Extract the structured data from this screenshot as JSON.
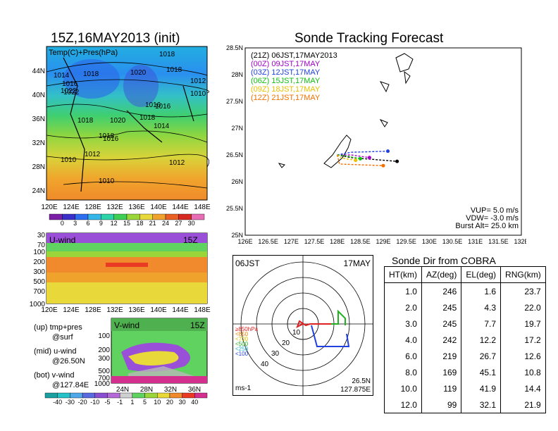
{
  "left": {
    "title": "15Z,16MAY2013 (init)",
    "top_panel": {
      "label": "Temp(C)+Pres(hPa)",
      "lat_labels": [
        "44N",
        "40N",
        "36N",
        "32N",
        "28N",
        "24N"
      ],
      "lon_labels": [
        "120E",
        "124E",
        "128E",
        "132E",
        "136E",
        "140E",
        "144E",
        "148E"
      ],
      "pressure_labels": [
        "1018",
        "1014",
        "1016",
        "1018",
        "1020",
        "1022",
        "1018",
        "1012",
        "1010",
        "1022",
        "1016",
        "1018",
        "1020",
        "1018",
        "1016",
        "1014",
        "1012",
        "1010",
        "1012",
        "1010",
        "1016",
        "1018"
      ],
      "colorbar_ticks": [
        "0",
        "3",
        "6",
        "9",
        "12",
        "15",
        "18",
        "21",
        "24",
        "27",
        "30"
      ],
      "colorbar_colors": [
        "#7a1fa6",
        "#3b2fc9",
        "#2d6ef0",
        "#33b6e8",
        "#2fd3a8",
        "#3fcf55",
        "#9ad63a",
        "#e8d83a",
        "#f0a32c",
        "#ea5f23",
        "#d62a22",
        "#e66db6"
      ]
    },
    "u_panel": {
      "label": "U-wind",
      "time": "15Z",
      "y_labels": [
        "30",
        "70",
        "100",
        "200",
        "300",
        "500",
        "700",
        "1000"
      ],
      "x_labels": [
        "120E",
        "124E",
        "128E",
        "132E",
        "136E",
        "140E",
        "144E",
        "148E"
      ]
    },
    "v_panel": {
      "label": "V-wind",
      "time": "15Z",
      "y_labels": [
        "100",
        "200",
        "300",
        "500",
        "700",
        "1000"
      ],
      "x_labels": [
        "24N",
        "28N",
        "32N",
        "36N"
      ]
    },
    "notes": [
      "(up) tmp+pres",
      "@surf",
      "(mid) u-wind",
      "@26.50N",
      "(bot) v-wind",
      "@127.84E"
    ],
    "wind_colorbar_ticks": [
      "-40",
      "-30",
      "-20",
      "-10",
      "-5",
      "-1",
      "1",
      "5",
      "10",
      "20",
      "30",
      "40"
    ],
    "wind_colorbar_colors": [
      "#1aa0a0",
      "#22c2c8",
      "#4fa8e8",
      "#5a6ae0",
      "#8a4fd0",
      "#b36ad8",
      "#cfcfcf",
      "#5fd25f",
      "#9ad63a",
      "#e8d83a",
      "#f08a2c",
      "#ea3a23",
      "#d42f8e"
    ]
  },
  "right": {
    "title": "Sonde Tracking Forecast",
    "tracks_legend": [
      {
        "text": "(21Z) 06JST,17MAY2013",
        "color": "#000000"
      },
      {
        "text": "(00Z) 09JST,17MAY",
        "color": "#a000c8"
      },
      {
        "text": "(03Z) 12JST,17MAY",
        "color": "#2040e0"
      },
      {
        "text": "(06Z) 15JST,17MAY",
        "color": "#10c010"
      },
      {
        "text": "(09Z) 18JST,17MAY",
        "color": "#e8c000"
      },
      {
        "text": "(12Z) 21JST,17MAY",
        "color": "#f07000"
      }
    ],
    "params": [
      "VUP= 5.0 m/s",
      "VDW= -3.0 m/s",
      "Burst Alt= 25.0 km"
    ],
    "lat_ticks": [
      "28.5N",
      "28N",
      "27.5N",
      "27N",
      "26.5N",
      "26N",
      "25.5N",
      "25N"
    ],
    "lon_ticks": [
      "126E",
      "126.5E",
      "127E",
      "127.5E",
      "128E",
      "128.5E",
      "129E",
      "129.5E",
      "130E",
      "130.5E",
      "131E",
      "131.5E",
      "132E"
    ]
  },
  "hodograph": {
    "time_left": "06JST",
    "date_right": "17MAY",
    "ring_labels": [
      "10",
      "20",
      "30",
      "40"
    ],
    "level_legend": [
      {
        "text": "≥850hPa",
        "color": "#e02020"
      },
      {
        "text": "<850",
        "color": "#f08000"
      },
      {
        "text": "<700",
        "color": "#d8c000"
      },
      {
        "text": "<500",
        "color": "#20b020"
      },
      {
        "text": "<250",
        "color": "#20b0d0"
      },
      {
        "text": "<100",
        "color": "#2040e0"
      }
    ],
    "unit": "ms-1",
    "loc_lat": "26.5N",
    "loc_lon": "127.875E"
  },
  "cobra_table": {
    "title": "Sonde Dir from COBRA",
    "headers": [
      "HT(km)",
      "AZ(deg)",
      "EL(deg)",
      "RNG(km)"
    ],
    "rows": [
      [
        "1.0",
        "246",
        "1.6",
        "23.7"
      ],
      [
        "2.0",
        "245",
        "4.3",
        "22.0"
      ],
      [
        "3.0",
        "245",
        "7.7",
        "19.7"
      ],
      [
        "4.0",
        "242",
        "12.2",
        "17.2"
      ],
      [
        "6.0",
        "219",
        "26.7",
        "12.6"
      ],
      [
        "8.0",
        "169",
        "45.1",
        "10.8"
      ],
      [
        "10.0",
        "119",
        "41.9",
        "14.4"
      ],
      [
        "12.0",
        "99",
        "32.1",
        "21.9"
      ]
    ]
  },
  "chart_data": [
    {
      "type": "line",
      "title": "Sonde Tracking Forecast",
      "xlim": [
        126,
        132
      ],
      "ylim": [
        25,
        28.5
      ],
      "series": [
        {
          "name": "(21Z) 06JST,17MAY2013",
          "x": [
            128.0,
            128.3,
            129.3
          ],
          "y": [
            26.5,
            26.45,
            26.38
          ]
        },
        {
          "name": "(00Z) 09JST,17MAY",
          "x": [
            128.0,
            128.3,
            128.7
          ],
          "y": [
            26.5,
            26.5,
            26.45
          ]
        },
        {
          "name": "(03Z) 12JST,17MAY",
          "x": [
            128.0,
            128.3,
            129.1
          ],
          "y": [
            26.5,
            26.55,
            26.57
          ]
        },
        {
          "name": "(06Z) 15JST,17MAY",
          "x": [
            128.0,
            128.2,
            128.5
          ],
          "y": [
            26.5,
            26.48,
            26.43
          ]
        },
        {
          "name": "(09Z) 18JST,17MAY",
          "x": [
            128.0,
            128.1,
            128.4
          ],
          "y": [
            26.5,
            26.44,
            26.4
          ]
        },
        {
          "name": "(12Z) 21JST,17MAY",
          "x": [
            128.0,
            128.05,
            129.0
          ],
          "y": [
            26.5,
            26.33,
            26.3
          ]
        }
      ]
    }
  ]
}
